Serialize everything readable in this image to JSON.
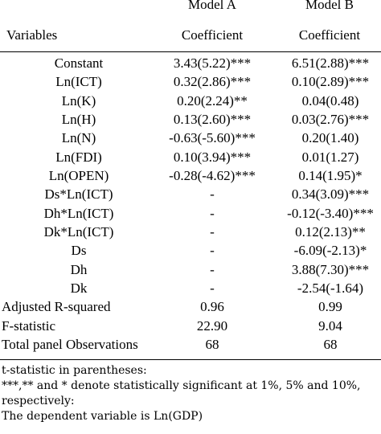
{
  "header": {
    "model_a": "Model A",
    "model_b": "Model B",
    "variables": "Variables",
    "coef_a": "Coefficient",
    "coef_b": "Coefficient"
  },
  "rows": [
    {
      "var": "Constant",
      "a": "3.43(5.22)***",
      "b": "6.51(2.88)***"
    },
    {
      "var": "Ln(ICT)",
      "a": "0.32(2.86)***",
      "b": "0.10(2.89)***"
    },
    {
      "var": "Ln(K)",
      "a": "0.20(2.24)**",
      "b": "0.04(0.48)"
    },
    {
      "var": "Ln(H)",
      "a": "0.13(2.60)***",
      "b": "0.03(2.76)***"
    },
    {
      "var": "Ln(N)",
      "a": "-0.63(-5.60)***",
      "b": "0.20(1.40)"
    },
    {
      "var": "Ln(FDI)",
      "a": "0.10(3.94)***",
      "b": "0.01(1.27)"
    },
    {
      "var": "Ln(OPEN)",
      "a": "-0.28(-4.62)***",
      "b": "0.14(1.95)*"
    },
    {
      "var": "Ds*Ln(ICT)",
      "a": "-",
      "b": "0.34(3.09)***"
    },
    {
      "var": "Dh*Ln(ICT)",
      "a": "-",
      "b": "-0.12(-3.40)***"
    },
    {
      "var": "Dk*Ln(ICT)",
      "a": "-",
      "b": "0.12(2.13)**"
    },
    {
      "var": "Ds",
      "a": "-",
      "b": "-6.09(-2.13)*"
    },
    {
      "var": "Dh",
      "a": "-",
      "b": "3.88(7.30)***"
    },
    {
      "var": "Dk",
      "a": "-",
      "b": "-2.54(-1.64)"
    }
  ],
  "stats": [
    {
      "var": "Adjusted R-squared",
      "a": "0.96",
      "b": "0.99"
    },
    {
      "var": "F-statistic",
      "a": "22.90",
      "b": "9.04"
    },
    {
      "var": "Total panel Observations",
      "a": "68",
      "b": "68"
    }
  ],
  "notes": [
    "t-statistic in parentheses:",
    "***,** and * denote statistically significant at 1%, 5% and 10%,",
    "respectively:",
    "The dependent variable is Ln(GDP)"
  ]
}
